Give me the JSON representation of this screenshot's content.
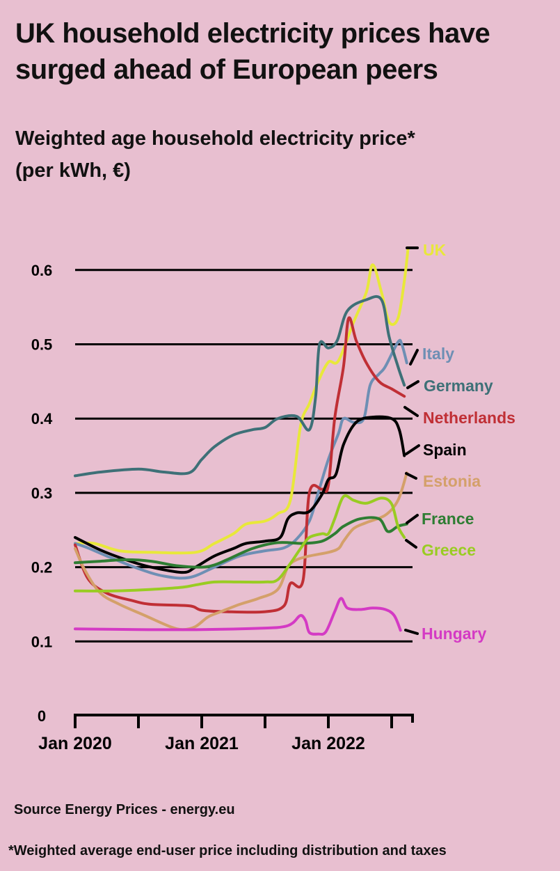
{
  "header": {
    "title": "UK household electricity prices have surged ahead of European peers",
    "subtitle_line1": "Weighted age household electricity price*",
    "subtitle_line2": "(per kWh, €)"
  },
  "footer": {
    "source": "Source Energy Prices - energy.eu",
    "footnote": "*Weighted average end-user price including distribution and taxes"
  },
  "chart_data": {
    "type": "line",
    "y_tick_labels": [
      "0",
      "0.1",
      "0.2",
      "0.3",
      "0.4",
      "0.5",
      "0.6"
    ],
    "y_ticks": [
      0,
      0.1,
      0.2,
      0.3,
      0.4,
      0.5,
      0.6
    ],
    "x_tick_labels": [
      "Jan 2020",
      "Jan 2021",
      "Jan 2022"
    ],
    "ylim": [
      0,
      0.6
    ],
    "grid": true,
    "legend": "direct labels at right end of lines",
    "series": [
      {
        "name": "UK",
        "color": "#e8e83a",
        "points": [
          [
            2020.0,
            0.232
          ],
          [
            2020.15,
            0.232
          ],
          [
            2020.35,
            0.222
          ],
          [
            2020.6,
            0.22
          ],
          [
            2020.95,
            0.22
          ],
          [
            2021.1,
            0.232
          ],
          [
            2021.25,
            0.245
          ],
          [
            2021.35,
            0.258
          ],
          [
            2021.5,
            0.262
          ],
          [
            2021.6,
            0.272
          ],
          [
            2021.7,
            0.29
          ],
          [
            2021.78,
            0.39
          ],
          [
            2021.85,
            0.42
          ],
          [
            2021.92,
            0.45
          ],
          [
            2022.0,
            0.476
          ],
          [
            2022.08,
            0.478
          ],
          [
            2022.2,
            0.53
          ],
          [
            2022.3,
            0.57
          ],
          [
            2022.35,
            0.607
          ],
          [
            2022.42,
            0.57
          ],
          [
            2022.48,
            0.53
          ],
          [
            2022.55,
            0.535
          ],
          [
            2022.6,
            0.585
          ],
          [
            2022.63,
            0.63
          ]
        ]
      },
      {
        "name": "Italy",
        "color": "#6e8fb4",
        "points": [
          [
            2020.0,
            0.232
          ],
          [
            2020.1,
            0.226
          ],
          [
            2020.25,
            0.215
          ],
          [
            2020.5,
            0.198
          ],
          [
            2020.7,
            0.188
          ],
          [
            2020.9,
            0.186
          ],
          [
            2021.1,
            0.2
          ],
          [
            2021.3,
            0.215
          ],
          [
            2021.5,
            0.222
          ],
          [
            2021.65,
            0.226
          ],
          [
            2021.75,
            0.238
          ],
          [
            2021.85,
            0.262
          ],
          [
            2021.92,
            0.3
          ],
          [
            2022.0,
            0.345
          ],
          [
            2022.08,
            0.38
          ],
          [
            2022.12,
            0.4
          ],
          [
            2022.2,
            0.395
          ],
          [
            2022.28,
            0.4
          ],
          [
            2022.33,
            0.445
          ],
          [
            2022.4,
            0.46
          ],
          [
            2022.45,
            0.47
          ],
          [
            2022.55,
            0.503
          ],
          [
            2022.58,
            0.5
          ],
          [
            2022.62,
            0.475
          ]
        ]
      },
      {
        "name": "Germany",
        "color": "#3e7077",
        "points": [
          [
            2020.0,
            0.323
          ],
          [
            2020.2,
            0.328
          ],
          [
            2020.5,
            0.332
          ],
          [
            2020.7,
            0.328
          ],
          [
            2020.9,
            0.327
          ],
          [
            2021.0,
            0.345
          ],
          [
            2021.1,
            0.362
          ],
          [
            2021.25,
            0.378
          ],
          [
            2021.4,
            0.385
          ],
          [
            2021.5,
            0.388
          ],
          [
            2021.6,
            0.4
          ],
          [
            2021.75,
            0.403
          ],
          [
            2021.85,
            0.385
          ],
          [
            2021.9,
            0.43
          ],
          [
            2021.93,
            0.5
          ],
          [
            2022.0,
            0.495
          ],
          [
            2022.07,
            0.505
          ],
          [
            2022.15,
            0.545
          ],
          [
            2022.3,
            0.56
          ],
          [
            2022.42,
            0.56
          ],
          [
            2022.48,
            0.51
          ],
          [
            2022.55,
            0.47
          ],
          [
            2022.6,
            0.445
          ]
        ]
      },
      {
        "name": "Netherlands",
        "color": "#c02f35",
        "points": [
          [
            2020.0,
            0.23
          ],
          [
            2020.1,
            0.185
          ],
          [
            2020.25,
            0.165
          ],
          [
            2020.45,
            0.155
          ],
          [
            2020.6,
            0.15
          ],
          [
            2020.9,
            0.148
          ],
          [
            2021.0,
            0.142
          ],
          [
            2021.2,
            0.14
          ],
          [
            2021.5,
            0.14
          ],
          [
            2021.65,
            0.148
          ],
          [
            2021.7,
            0.178
          ],
          [
            2021.8,
            0.182
          ],
          [
            2021.85,
            0.3
          ],
          [
            2021.95,
            0.305
          ],
          [
            2022.0,
            0.31
          ],
          [
            2022.05,
            0.4
          ],
          [
            2022.12,
            0.47
          ],
          [
            2022.16,
            0.535
          ],
          [
            2022.22,
            0.505
          ],
          [
            2022.3,
            0.475
          ],
          [
            2022.4,
            0.45
          ],
          [
            2022.5,
            0.44
          ],
          [
            2022.6,
            0.43
          ]
        ]
      },
      {
        "name": "Spain",
        "color": "#000000",
        "points": [
          [
            2020.0,
            0.24
          ],
          [
            2020.2,
            0.223
          ],
          [
            2020.4,
            0.21
          ],
          [
            2020.6,
            0.2
          ],
          [
            2020.85,
            0.193
          ],
          [
            2020.95,
            0.2
          ],
          [
            2021.1,
            0.215
          ],
          [
            2021.25,
            0.225
          ],
          [
            2021.35,
            0.232
          ],
          [
            2021.5,
            0.235
          ],
          [
            2021.62,
            0.24
          ],
          [
            2021.68,
            0.265
          ],
          [
            2021.75,
            0.273
          ],
          [
            2021.85,
            0.275
          ],
          [
            2021.95,
            0.298
          ],
          [
            2022.0,
            0.318
          ],
          [
            2022.06,
            0.325
          ],
          [
            2022.12,
            0.365
          ],
          [
            2022.22,
            0.395
          ],
          [
            2022.35,
            0.402
          ],
          [
            2022.5,
            0.4
          ],
          [
            2022.56,
            0.385
          ],
          [
            2022.6,
            0.35
          ]
        ]
      },
      {
        "name": "Estonia",
        "color": "#d4a06a",
        "points": [
          [
            2020.0,
            0.225
          ],
          [
            2020.08,
            0.195
          ],
          [
            2020.2,
            0.165
          ],
          [
            2020.35,
            0.15
          ],
          [
            2020.55,
            0.135
          ],
          [
            2020.75,
            0.12
          ],
          [
            2020.85,
            0.116
          ],
          [
            2020.95,
            0.12
          ],
          [
            2021.05,
            0.133
          ],
          [
            2021.15,
            0.14
          ],
          [
            2021.3,
            0.15
          ],
          [
            2021.45,
            0.158
          ],
          [
            2021.6,
            0.17
          ],
          [
            2021.68,
            0.2
          ],
          [
            2021.75,
            0.21
          ],
          [
            2021.85,
            0.215
          ],
          [
            2022.0,
            0.22
          ],
          [
            2022.08,
            0.225
          ],
          [
            2022.12,
            0.235
          ],
          [
            2022.2,
            0.252
          ],
          [
            2022.3,
            0.26
          ],
          [
            2022.45,
            0.27
          ],
          [
            2022.55,
            0.29
          ],
          [
            2022.62,
            0.327
          ]
        ]
      },
      {
        "name": "France",
        "color": "#2e7d33",
        "points": [
          [
            2020.0,
            0.206
          ],
          [
            2020.2,
            0.208
          ],
          [
            2020.4,
            0.21
          ],
          [
            2020.6,
            0.208
          ],
          [
            2020.8,
            0.202
          ],
          [
            2021.0,
            0.2
          ],
          [
            2021.1,
            0.203
          ],
          [
            2021.2,
            0.21
          ],
          [
            2021.4,
            0.225
          ],
          [
            2021.6,
            0.233
          ],
          [
            2021.8,
            0.232
          ],
          [
            2021.95,
            0.235
          ],
          [
            2022.05,
            0.245
          ],
          [
            2022.12,
            0.255
          ],
          [
            2022.25,
            0.265
          ],
          [
            2022.4,
            0.265
          ],
          [
            2022.47,
            0.248
          ],
          [
            2022.55,
            0.255
          ],
          [
            2022.62,
            0.258
          ]
        ]
      },
      {
        "name": "Greece",
        "color": "#99cc22",
        "points": [
          [
            2020.0,
            0.168
          ],
          [
            2020.3,
            0.168
          ],
          [
            2020.6,
            0.17
          ],
          [
            2020.85,
            0.173
          ],
          [
            2020.95,
            0.176
          ],
          [
            2021.1,
            0.18
          ],
          [
            2021.3,
            0.18
          ],
          [
            2021.5,
            0.18
          ],
          [
            2021.6,
            0.183
          ],
          [
            2021.7,
            0.205
          ],
          [
            2021.78,
            0.225
          ],
          [
            2021.85,
            0.24
          ],
          [
            2021.95,
            0.245
          ],
          [
            2022.0,
            0.245
          ],
          [
            2022.05,
            0.265
          ],
          [
            2022.12,
            0.295
          ],
          [
            2022.2,
            0.29
          ],
          [
            2022.3,
            0.286
          ],
          [
            2022.42,
            0.293
          ],
          [
            2022.5,
            0.285
          ],
          [
            2022.55,
            0.255
          ],
          [
            2022.6,
            0.24
          ]
        ]
      },
      {
        "name": "Hungary",
        "color": "#d43ac4",
        "points": [
          [
            2020.0,
            0.117
          ],
          [
            2020.5,
            0.116
          ],
          [
            2021.0,
            0.116
          ],
          [
            2021.5,
            0.118
          ],
          [
            2021.65,
            0.12
          ],
          [
            2021.72,
            0.125
          ],
          [
            2021.78,
            0.135
          ],
          [
            2021.82,
            0.128
          ],
          [
            2021.85,
            0.112
          ],
          [
            2021.92,
            0.11
          ],
          [
            2021.98,
            0.113
          ],
          [
            2022.05,
            0.14
          ],
          [
            2022.1,
            0.158
          ],
          [
            2022.15,
            0.145
          ],
          [
            2022.25,
            0.143
          ],
          [
            2022.35,
            0.145
          ],
          [
            2022.45,
            0.143
          ],
          [
            2022.52,
            0.135
          ],
          [
            2022.57,
            0.115
          ]
        ]
      }
    ]
  }
}
